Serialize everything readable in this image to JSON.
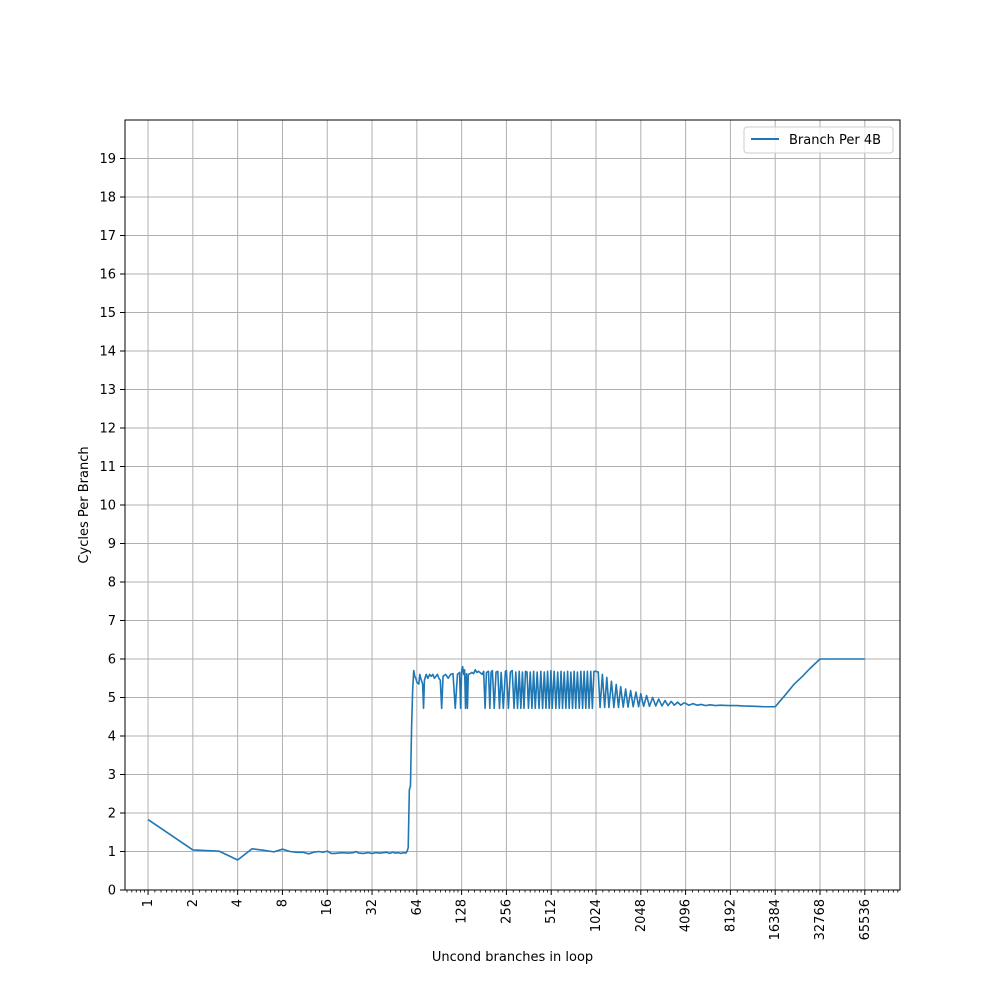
{
  "chart_data": {
    "type": "line",
    "xlabel": "Uncond branches in loop",
    "ylabel": "Cycles Per Branch",
    "x_scale": "log2",
    "xlim": [
      0.7,
      113000
    ],
    "ylim": [
      0,
      20
    ],
    "x_ticks": [
      1,
      2,
      4,
      8,
      16,
      32,
      64,
      128,
      256,
      512,
      1024,
      2048,
      4096,
      8192,
      16384,
      32768,
      65536
    ],
    "x_tick_labels": [
      "1",
      "2",
      "4",
      "8",
      "16",
      "32",
      "64",
      "128",
      "256",
      "512",
      "1024",
      "2048",
      "4096",
      "8192",
      "16384",
      "32768",
      "65536"
    ],
    "y_ticks": [
      0,
      1,
      2,
      3,
      4,
      5,
      6,
      7,
      8,
      9,
      10,
      11,
      12,
      13,
      14,
      15,
      16,
      17,
      18,
      19
    ],
    "y_tick_labels": [
      "0",
      "1",
      "2",
      "3",
      "4",
      "5",
      "6",
      "7",
      "8",
      "9",
      "10",
      "11",
      "12",
      "13",
      "14",
      "15",
      "16",
      "17",
      "18",
      "19"
    ],
    "grid": true,
    "legend_position": "top-right",
    "colors": {
      "series": "#1f77b4",
      "grid": "#b0b0b0"
    },
    "series": [
      {
        "name": "Branch Per 4B",
        "points": [
          [
            1,
            1.83
          ],
          [
            2,
            1.04
          ],
          [
            3,
            1.01
          ],
          [
            4,
            0.78
          ],
          [
            5,
            1.07
          ],
          [
            6,
            1.03
          ],
          [
            7,
            0.99
          ],
          [
            8,
            1.06
          ],
          [
            9,
            1.0
          ],
          [
            10,
            0.98
          ],
          [
            11,
            0.98
          ],
          [
            12,
            0.94
          ],
          [
            13,
            0.98
          ],
          [
            14,
            1.0
          ],
          [
            15,
            0.98
          ],
          [
            16,
            1.01
          ],
          [
            17,
            0.95
          ],
          [
            18,
            0.95
          ],
          [
            20,
            0.97
          ],
          [
            22,
            0.96
          ],
          [
            24,
            0.97
          ],
          [
            25,
            1.0
          ],
          [
            26,
            0.96
          ],
          [
            28,
            0.95
          ],
          [
            30,
            0.97
          ],
          [
            32,
            0.95
          ],
          [
            34,
            0.97
          ],
          [
            36,
            0.96
          ],
          [
            38,
            0.97
          ],
          [
            40,
            0.98
          ],
          [
            42,
            0.95
          ],
          [
            44,
            0.98
          ],
          [
            46,
            0.96
          ],
          [
            48,
            0.97
          ],
          [
            50,
            0.95
          ],
          [
            52,
            0.97
          ],
          [
            54,
            0.96
          ],
          [
            55,
            1.0
          ],
          [
            56,
            1.1
          ],
          [
            57,
            2.6
          ],
          [
            58,
            2.7
          ],
          [
            59,
            4.2
          ],
          [
            60,
            5.2
          ],
          [
            61,
            5.7
          ],
          [
            62,
            5.55
          ],
          [
            63,
            5.5
          ],
          [
            64,
            5.4
          ],
          [
            66,
            5.35
          ],
          [
            67,
            5.6
          ],
          [
            68,
            5.5
          ],
          [
            70,
            5.35
          ],
          [
            71,
            4.72
          ],
          [
            72,
            5.45
          ],
          [
            74,
            5.6
          ],
          [
            76,
            5.5
          ],
          [
            78,
            5.6
          ],
          [
            80,
            5.55
          ],
          [
            82,
            5.6
          ],
          [
            84,
            5.5
          ],
          [
            86,
            5.55
          ],
          [
            88,
            5.6
          ],
          [
            90,
            5.5
          ],
          [
            92,
            5.45
          ],
          [
            94,
            4.72
          ],
          [
            96,
            5.55
          ],
          [
            100,
            5.6
          ],
          [
            104,
            5.5
          ],
          [
            108,
            5.6
          ],
          [
            112,
            5.62
          ],
          [
            116,
            4.72
          ],
          [
            120,
            5.6
          ],
          [
            124,
            5.65
          ],
          [
            126,
            4.72
          ],
          [
            128,
            5.7
          ],
          [
            130,
            5.8
          ],
          [
            132,
            5.6
          ],
          [
            134,
            5.72
          ],
          [
            136,
            4.72
          ],
          [
            138,
            5.62
          ],
          [
            140,
            4.72
          ],
          [
            142,
            5.6
          ],
          [
            146,
            5.62
          ],
          [
            150,
            5.65
          ],
          [
            154,
            5.62
          ],
          [
            158,
            5.72
          ],
          [
            162,
            5.65
          ],
          [
            166,
            5.68
          ],
          [
            170,
            5.65
          ],
          [
            176,
            5.6
          ],
          [
            180,
            5.68
          ],
          [
            184,
            4.72
          ],
          [
            188,
            5.65
          ],
          [
            194,
            5.68
          ],
          [
            198,
            4.72
          ],
          [
            202,
            5.66
          ],
          [
            206,
            5.7
          ],
          [
            212,
            4.72
          ],
          [
            218,
            5.66
          ],
          [
            224,
            5.68
          ],
          [
            230,
            4.72
          ],
          [
            236,
            5.65
          ],
          [
            244,
            4.72
          ],
          [
            252,
            5.68
          ],
          [
            256,
            5.7
          ],
          [
            264,
            4.72
          ],
          [
            272,
            5.66
          ],
          [
            280,
            5.7
          ],
          [
            288,
            4.72
          ],
          [
            296,
            5.66
          ],
          [
            304,
            4.72
          ],
          [
            312,
            5.68
          ],
          [
            320,
            4.72
          ],
          [
            328,
            5.66
          ],
          [
            336,
            4.72
          ],
          [
            344,
            5.68
          ],
          [
            352,
            5.66
          ],
          [
            360,
            4.72
          ],
          [
            370,
            5.66
          ],
          [
            380,
            4.72
          ],
          [
            390,
            5.68
          ],
          [
            400,
            4.72
          ],
          [
            412,
            5.66
          ],
          [
            424,
            4.72
          ],
          [
            436,
            5.68
          ],
          [
            448,
            4.72
          ],
          [
            460,
            5.66
          ],
          [
            472,
            4.72
          ],
          [
            484,
            5.68
          ],
          [
            496,
            4.72
          ],
          [
            510,
            5.7
          ],
          [
            520,
            4.72
          ],
          [
            536,
            5.68
          ],
          [
            550,
            4.72
          ],
          [
            566,
            5.66
          ],
          [
            580,
            4.72
          ],
          [
            596,
            5.68
          ],
          [
            610,
            4.72
          ],
          [
            626,
            5.66
          ],
          [
            642,
            4.72
          ],
          [
            660,
            5.68
          ],
          [
            676,
            4.72
          ],
          [
            694,
            5.66
          ],
          [
            712,
            4.72
          ],
          [
            730,
            5.68
          ],
          [
            748,
            4.72
          ],
          [
            768,
            5.66
          ],
          [
            790,
            4.72
          ],
          [
            810,
            5.68
          ],
          [
            832,
            4.72
          ],
          [
            852,
            5.68
          ],
          [
            874,
            4.72
          ],
          [
            896,
            5.68
          ],
          [
            920,
            4.72
          ],
          [
            944,
            5.68
          ],
          [
            968,
            4.72
          ],
          [
            992,
            5.68
          ],
          [
            1024,
            5.68
          ],
          [
            1060,
            5.66
          ],
          [
            1090,
            4.74
          ],
          [
            1130,
            5.6
          ],
          [
            1170,
            4.74
          ],
          [
            1210,
            5.52
          ],
          [
            1250,
            4.74
          ],
          [
            1300,
            5.42
          ],
          [
            1350,
            4.74
          ],
          [
            1400,
            5.34
          ],
          [
            1450,
            4.74
          ],
          [
            1500,
            5.28
          ],
          [
            1560,
            4.75
          ],
          [
            1620,
            5.22
          ],
          [
            1680,
            4.75
          ],
          [
            1750,
            5.18
          ],
          [
            1820,
            4.76
          ],
          [
            1900,
            5.14
          ],
          [
            1980,
            4.76
          ],
          [
            2048,
            5.1
          ],
          [
            2140,
            4.77
          ],
          [
            2240,
            5.05
          ],
          [
            2340,
            4.77
          ],
          [
            2460,
            5.0
          ],
          [
            2580,
            4.78
          ],
          [
            2700,
            4.96
          ],
          [
            2840,
            4.78
          ],
          [
            2980,
            4.92
          ],
          [
            3120,
            4.79
          ],
          [
            3280,
            4.9
          ],
          [
            3440,
            4.8
          ],
          [
            3620,
            4.88
          ],
          [
            3800,
            4.8
          ],
          [
            4000,
            4.86
          ],
          [
            4096,
            4.85
          ],
          [
            4300,
            4.8
          ],
          [
            4600,
            4.84
          ],
          [
            4900,
            4.8
          ],
          [
            5200,
            4.82
          ],
          [
            5600,
            4.79
          ],
          [
            6000,
            4.81
          ],
          [
            6500,
            4.79
          ],
          [
            7000,
            4.8
          ],
          [
            8000,
            4.79
          ],
          [
            9000,
            4.79
          ],
          [
            10000,
            4.78
          ],
          [
            12000,
            4.77
          ],
          [
            14000,
            4.76
          ],
          [
            16384,
            4.76
          ],
          [
            19000,
            5.05
          ],
          [
            22000,
            5.35
          ],
          [
            25000,
            5.55
          ],
          [
            28000,
            5.75
          ],
          [
            32768,
            6.0
          ],
          [
            40000,
            6.0
          ],
          [
            50000,
            6.0
          ],
          [
            65536,
            6.0
          ]
        ]
      }
    ]
  }
}
